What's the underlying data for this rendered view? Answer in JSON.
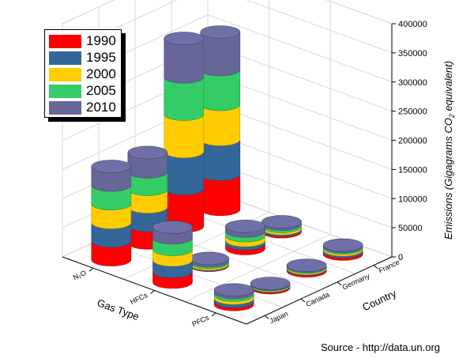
{
  "chart_data": {
    "type": "bar",
    "subtype": "3d-stacked-cylinder",
    "xlabel": "Gas Type",
    "ylabel": "Country",
    "zlabel": "Emissions (Gigagrams CO2 equivalent)",
    "zlabel_main": "Emissions (Gigagrams CO",
    "zlabel_sub": "2",
    "zlabel_tail": " equivalent)",
    "zlim": [
      0,
      400000
    ],
    "zticks": [
      "0",
      "50000",
      "100000",
      "150000",
      "200000",
      "250000",
      "300000",
      "350000",
      "400000"
    ],
    "gas_types": [
      "N₂O",
      "HFCs",
      "PFCs"
    ],
    "countries": [
      "France",
      "Germany",
      "Canada",
      "Japan"
    ],
    "legend": {
      "position": "top-left",
      "entries": [
        "1990",
        "1995",
        "2000",
        "2005",
        "2010"
      ],
      "colors": [
        "#ff0000",
        "#336699",
        "#ffcc00",
        "#33cc66",
        "#666699"
      ]
    },
    "series": [
      {
        "name": "1990",
        "values": [
          [
            60000,
            64000,
            30000,
            32000
          ],
          [
            2500,
            8000,
            800,
            18000
          ],
          [
            4000,
            2500,
            2000,
            5000
          ]
        ]
      },
      {
        "name": "1995",
        "values": [
          [
            60000,
            64000,
            32000,
            32000
          ],
          [
            3000,
            6000,
            1500,
            20000
          ],
          [
            3500,
            2000,
            1500,
            6000
          ]
        ]
      },
      {
        "name": "2000",
        "values": [
          [
            60000,
            64000,
            30000,
            32000
          ],
          [
            3500,
            8000,
            2500,
            18000
          ],
          [
            3000,
            2000,
            1500,
            5000
          ]
        ]
      },
      {
        "name": "2005",
        "values": [
          [
            60000,
            64000,
            30000,
            32000
          ],
          [
            4000,
            8000,
            3000,
            20000
          ],
          [
            2500,
            1500,
            1200,
            4500
          ]
        ]
      },
      {
        "name": "2010",
        "values": [
          [
            64000,
            66000,
            33000,
            32000
          ],
          [
            4000,
            8000,
            4000,
            18000
          ],
          [
            2500,
            1500,
            1200,
            4500
          ]
        ]
      }
    ],
    "grid": true
  },
  "source_text": "Source - http://data.un.org"
}
